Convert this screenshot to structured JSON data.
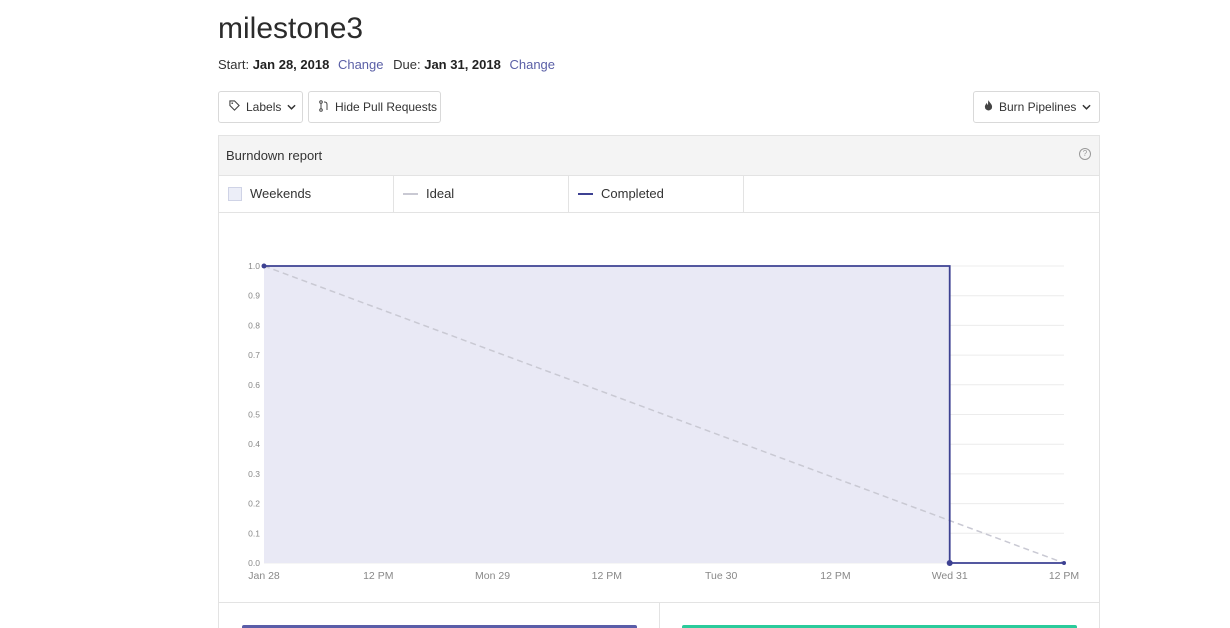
{
  "milestone": {
    "title": "milestone3",
    "start_label": "Start:",
    "start_date": "Jan 28, 2018",
    "due_label": "Due:",
    "due_date": "Jan 31, 2018",
    "change_label": "Change"
  },
  "toolbar": {
    "labels_button": "Labels",
    "hide_pr_button": "Hide Pull Requests",
    "burn_button": "Burn Pipelines"
  },
  "report": {
    "title": "Burndown report",
    "help_glyph": "?",
    "legend": [
      {
        "label": "Weekends"
      },
      {
        "label": "Ideal"
      },
      {
        "label": "Completed"
      }
    ]
  },
  "colors": {
    "completed": "#3d4192",
    "completed_fill": "#e9e9f5",
    "ideal": "#c9c9d3",
    "grid": "#ececec",
    "link": "#5a5fa6"
  },
  "chart_data": {
    "type": "line",
    "title": "",
    "xlabel": "",
    "ylabel": "",
    "ylim": [
      0,
      1
    ],
    "y_ticks": [
      "0.0",
      "0.1",
      "0.2",
      "0.3",
      "0.4",
      "0.5",
      "0.6",
      "0.7",
      "0.8",
      "0.9",
      "1.0"
    ],
    "x_ticks": [
      "Jan 28",
      "12 PM",
      "Mon 29",
      "12 PM",
      "Tue 30",
      "12 PM",
      "Wed 31",
      "12 PM"
    ],
    "x_range_hours": [
      0,
      84
    ],
    "grid": true,
    "series": [
      {
        "name": "Ideal",
        "style": "dashed",
        "points": [
          {
            "x_hours": 0,
            "y": 1.0
          },
          {
            "x_hours": 84,
            "y": 0.0
          }
        ]
      },
      {
        "name": "Completed",
        "style": "step",
        "points": [
          {
            "x_hours": 0,
            "y": 1.0
          },
          {
            "x_hours": 72,
            "y": 1.0
          },
          {
            "x_hours": 72,
            "y": 0.0
          },
          {
            "x_hours": 84,
            "y": 0.0
          }
        ]
      }
    ]
  }
}
